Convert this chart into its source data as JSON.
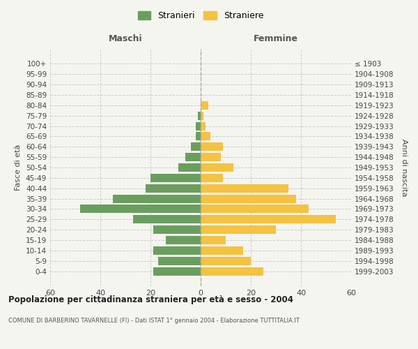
{
  "age_groups": [
    "0-4",
    "5-9",
    "10-14",
    "15-19",
    "20-24",
    "25-29",
    "30-34",
    "35-39",
    "40-44",
    "45-49",
    "50-54",
    "55-59",
    "60-64",
    "65-69",
    "70-74",
    "75-79",
    "80-84",
    "85-89",
    "90-94",
    "95-99",
    "100+"
  ],
  "birth_years": [
    "1999-2003",
    "1994-1998",
    "1989-1993",
    "1984-1988",
    "1979-1983",
    "1974-1978",
    "1969-1973",
    "1964-1968",
    "1959-1963",
    "1954-1958",
    "1949-1953",
    "1944-1948",
    "1939-1943",
    "1934-1938",
    "1929-1933",
    "1924-1928",
    "1919-1923",
    "1914-1918",
    "1909-1913",
    "1904-1908",
    "≤ 1903"
  ],
  "maschi": [
    19,
    17,
    19,
    14,
    19,
    27,
    48,
    35,
    22,
    20,
    9,
    6,
    4,
    2,
    2,
    1,
    0,
    0,
    0,
    0,
    0
  ],
  "femmine": [
    25,
    20,
    17,
    10,
    30,
    54,
    43,
    38,
    35,
    9,
    13,
    8,
    9,
    4,
    2,
    1,
    3,
    0,
    0,
    0,
    0
  ],
  "maschi_color": "#6a9e5e",
  "femmine_color": "#f5c242",
  "title": "Popolazione per cittadinanza straniera per età e sesso - 2004",
  "subtitle": "COMUNE DI BARBERINO TAVARNELLE (FI) - Dati ISTAT 1° gennaio 2004 - Elaborazione TUTTITALIA.IT",
  "xlabel_left": "Maschi",
  "xlabel_right": "Femmine",
  "ylabel_left": "Fasce di età",
  "ylabel_right": "Anni di nascita",
  "xlim": 60,
  "legend_stranieri": "Stranieri",
  "legend_straniere": "Straniere",
  "bg_color": "#f5f5f0",
  "grid_color": "#cccccc",
  "dashed_line_color": "#aaaaaa"
}
